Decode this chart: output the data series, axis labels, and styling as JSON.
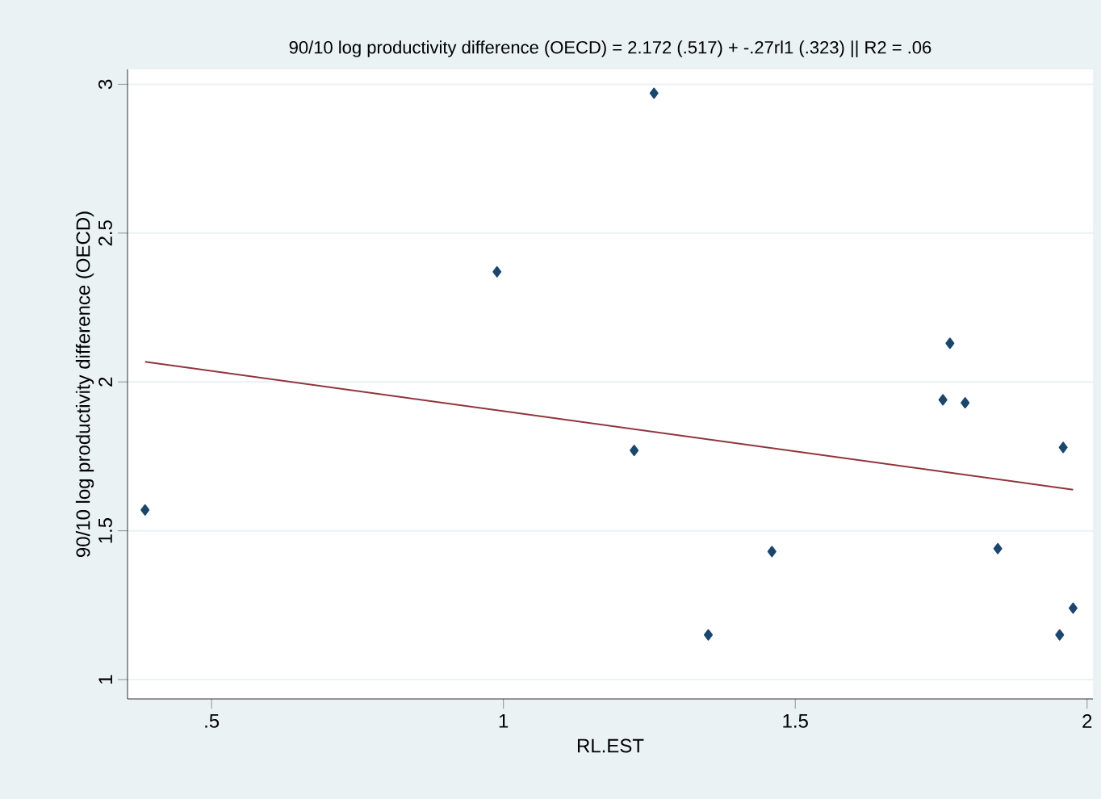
{
  "chart_data": {
    "type": "scatter",
    "title": "90/10 log productivity difference (OECD) = 2.172 (.517) + -.27rl1 (.323) || R2 = .06",
    "xlabel": "RL.EST",
    "ylabel": "90/10 log productivity difference (OECD)",
    "series": [
      {
        "color": "#1a476f",
        "marker": "diamond",
        "x": [
          0.386,
          0.989,
          1.224,
          1.258,
          1.351,
          1.46,
          1.753,
          1.765,
          1.791,
          1.847,
          1.953,
          1.959,
          1.976
        ],
        "values": [
          1.57,
          2.37,
          1.77,
          2.97,
          1.15,
          1.43,
          1.94,
          2.13,
          1.93,
          1.44,
          1.15,
          1.78,
          1.24
        ]
      },
      {
        "type": "line",
        "color": "#90353b",
        "marker": "none",
        "x": [
          0.386,
          1.976
        ],
        "values": [
          2.068,
          1.638
        ]
      }
    ],
    "xlim": [
      0.356,
      2.01
    ],
    "ylim": [
      0.935,
      3.05
    ],
    "xticks": [
      {
        "value": 0.5,
        "label": ".5"
      },
      1,
      1.5,
      2
    ],
    "yticks": [
      1,
      1.5,
      2,
      2.5,
      3
    ],
    "grid": "y"
  }
}
